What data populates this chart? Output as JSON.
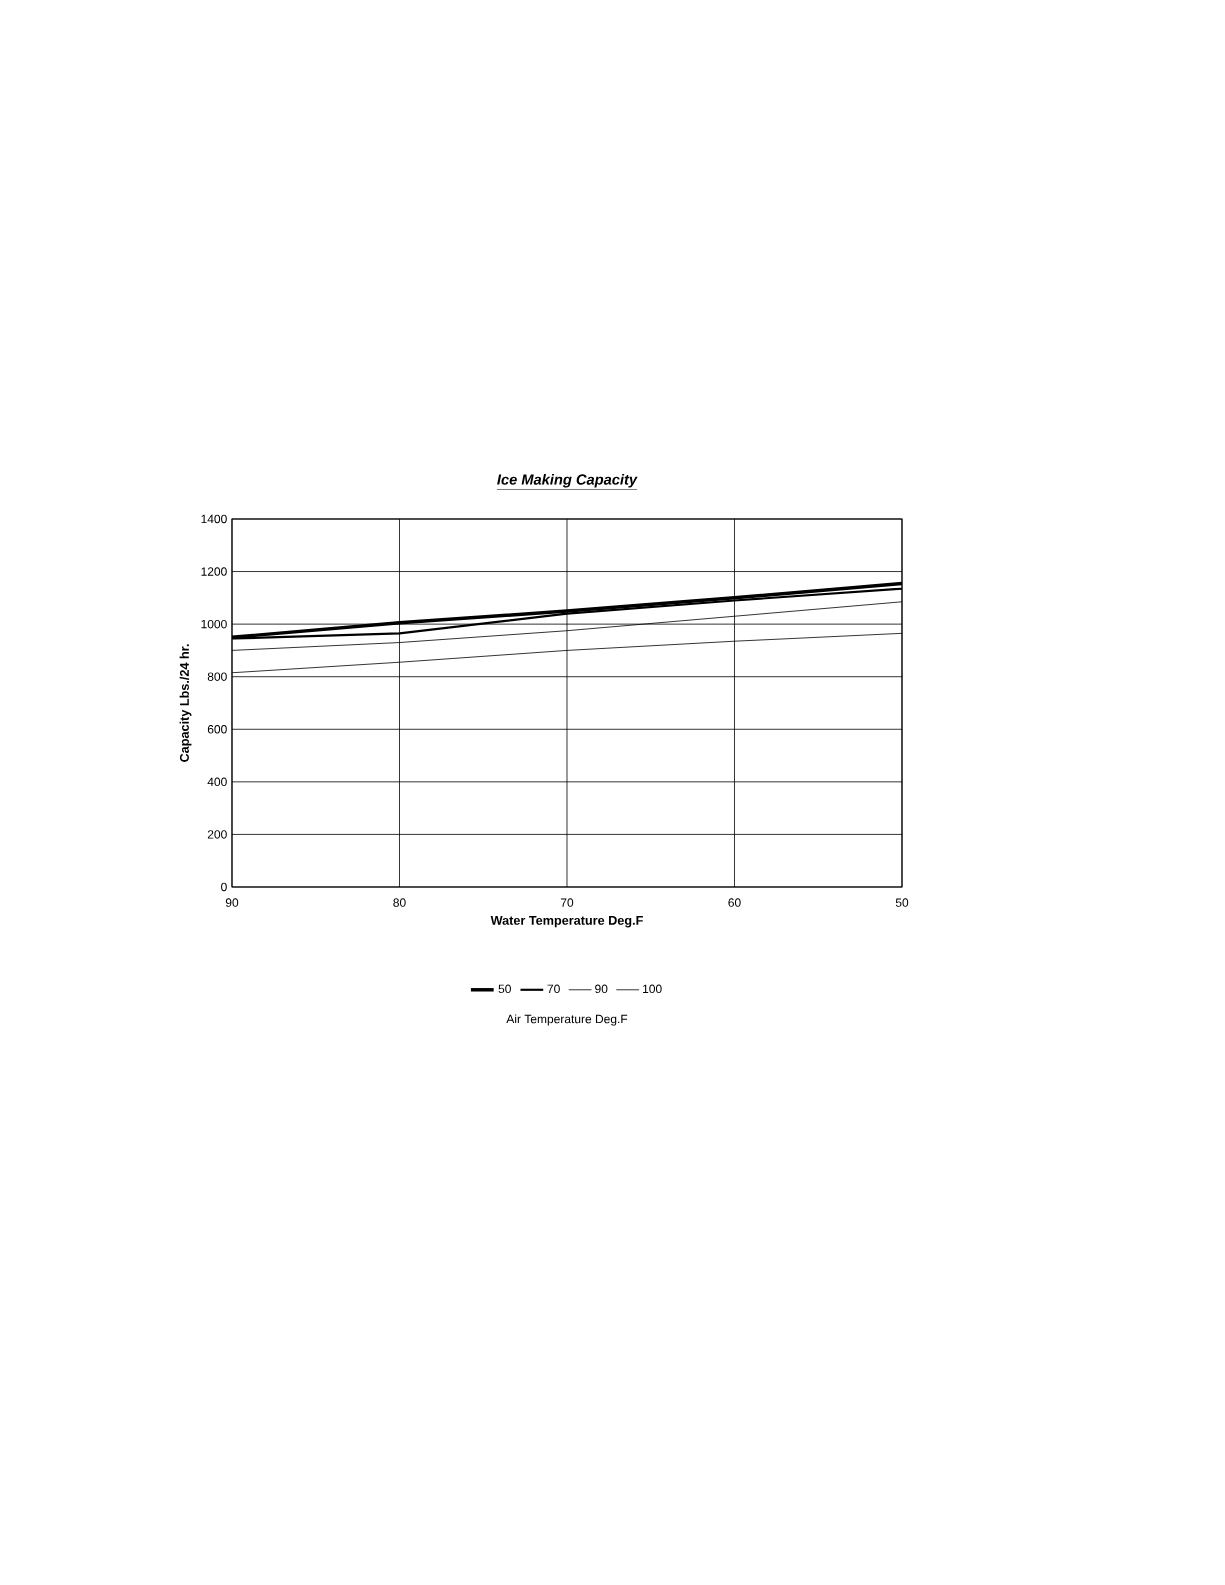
{
  "chart_data": {
    "type": "line",
    "title": "Ice Making Capacity",
    "xlabel": "Water Temperature Deg.F",
    "ylabel": "Capacity Lbs./24 hr.",
    "legend_title": "Air Temperature Deg.F",
    "x": [
      90,
      80,
      70,
      60,
      50
    ],
    "series": [
      {
        "name": "50",
        "color": "#000000",
        "values": [
          950,
          1005,
          1050,
          1100,
          1155
        ]
      },
      {
        "name": "70",
        "color": "#000000",
        "values": [
          945,
          965,
          1040,
          1090,
          1135
        ]
      },
      {
        "name": "90",
        "color": "#000000",
        "values": [
          900,
          930,
          975,
          1030,
          1085
        ]
      },
      {
        "name": "100",
        "color": "#000000",
        "values": [
          815,
          855,
          900,
          935,
          965
        ]
      }
    ],
    "xlim": [
      90,
      50
    ],
    "xticks": [
      90,
      80,
      70,
      60,
      50
    ],
    "ylim": [
      0,
      1400
    ],
    "yticks": [
      0,
      200,
      400,
      600,
      800,
      1000,
      1200,
      1400
    ],
    "grid": true,
    "legend": "bottom",
    "marker": "none",
    "line_style": "solid"
  }
}
